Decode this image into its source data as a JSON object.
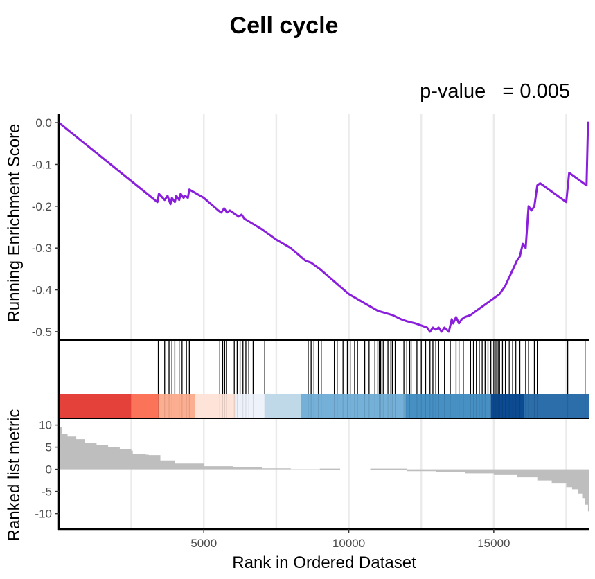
{
  "chart_data": {
    "type": "line",
    "title": "Cell cycle",
    "annotation": "p-value   = 0.005",
    "xlabel": "Rank in Ordered Dataset",
    "xlim": [
      1,
      18300
    ],
    "x_ticks": [
      5000,
      10000,
      15000
    ],
    "grid": "vertical",
    "enrichment_panel": {
      "ylabel": "Running Enrichment Score",
      "ylim": [
        -0.52,
        0.02
      ],
      "y_ticks": [
        "0.0",
        "-0.1",
        "-0.2",
        "-0.3",
        "-0.4",
        "-0.5"
      ],
      "y_tick_values": [
        0,
        -0.1,
        -0.2,
        -0.3,
        -0.4,
        -0.5
      ],
      "line_color": "#8a1fdb",
      "series": [
        {
          "x": [
            1,
            3400,
            3450,
            3650,
            3750,
            3850,
            3900,
            4000,
            4050,
            4150,
            4200,
            4300,
            4350,
            4450,
            4500,
            5000,
            5500,
            5600,
            5700,
            5800,
            5900,
            6000,
            6200,
            6300,
            6400,
            7000,
            7500,
            8000,
            8500,
            8700,
            9000,
            9500,
            10000,
            10500,
            11000,
            11500,
            11800,
            12000,
            12300,
            12700,
            12800,
            12900,
            13000,
            13100,
            13200,
            13300,
            13450,
            13550,
            13600,
            13700,
            13800,
            13900,
            14000,
            14200,
            14400,
            14600,
            14800,
            15000,
            15200,
            15400,
            15600,
            15800,
            15900,
            16000,
            16100,
            16200,
            16300,
            16400,
            16500,
            16600,
            16700,
            17500,
            17600,
            18200,
            18250,
            18280
          ],
          "y": [
            0.0,
            -0.19,
            -0.17,
            -0.185,
            -0.175,
            -0.195,
            -0.18,
            -0.19,
            -0.175,
            -0.185,
            -0.17,
            -0.18,
            -0.175,
            -0.18,
            -0.16,
            -0.18,
            -0.21,
            -0.215,
            -0.205,
            -0.215,
            -0.21,
            -0.215,
            -0.225,
            -0.22,
            -0.23,
            -0.255,
            -0.28,
            -0.3,
            -0.33,
            -0.335,
            -0.35,
            -0.38,
            -0.41,
            -0.43,
            -0.45,
            -0.46,
            -0.47,
            -0.475,
            -0.48,
            -0.49,
            -0.5,
            -0.49,
            -0.495,
            -0.49,
            -0.5,
            -0.49,
            -0.5,
            -0.47,
            -0.48,
            -0.465,
            -0.48,
            -0.47,
            -0.465,
            -0.46,
            -0.45,
            -0.44,
            -0.43,
            -0.42,
            -0.41,
            -0.39,
            -0.36,
            -0.33,
            -0.32,
            -0.29,
            -0.3,
            -0.2,
            -0.21,
            -0.2,
            -0.15,
            -0.145,
            -0.15,
            -0.19,
            -0.12,
            -0.15,
            0.0,
            0.0
          ]
        }
      ]
    },
    "hit_ranks": [
      3430,
      3650,
      3800,
      3900,
      4000,
      4150,
      4250,
      4400,
      4500,
      5550,
      5650,
      5720,
      5780,
      6050,
      6150,
      6250,
      6350,
      6450,
      6550,
      6700,
      7100,
      8600,
      8700,
      8800,
      8950,
      9050,
      9500,
      9600,
      9800,
      9950,
      10050,
      10200,
      10300,
      10550,
      10700,
      10900,
      11000,
      11050,
      11100,
      11150,
      11200,
      11350,
      11450,
      11500,
      11600,
      11900,
      12000,
      12100,
      12150,
      12350,
      12500,
      12650,
      12800,
      12900,
      13000,
      13100,
      13300,
      13500,
      13700,
      13800,
      13950,
      14200,
      14300,
      14400,
      14500,
      14600,
      14700,
      14800,
      14900,
      15000,
      15050,
      15100,
      15150,
      15200,
      15300,
      15400,
      15500,
      15550,
      15650,
      15750,
      15800,
      15900,
      16100,
      16200,
      16400,
      16500,
      17550,
      18150
    ],
    "color_bar": [
      {
        "from": 1,
        "to": 2500,
        "color": "#e3413a"
      },
      {
        "from": 2500,
        "to": 3450,
        "color": "#fb7358"
      },
      {
        "from": 3450,
        "to": 4700,
        "color": "#fcae91"
      },
      {
        "from": 4700,
        "to": 6100,
        "color": "#fde3d8"
      },
      {
        "from": 6100,
        "to": 7100,
        "color": "#eef3fb"
      },
      {
        "from": 7100,
        "to": 8350,
        "color": "#c0d9e8"
      },
      {
        "from": 8350,
        "to": 11950,
        "color": "#74b0d8"
      },
      {
        "from": 11950,
        "to": 14900,
        "color": "#4690c4"
      },
      {
        "from": 14900,
        "to": 16050,
        "color": "#0c4b91"
      },
      {
        "from": 16050,
        "to": 18300,
        "color": "#2b6eaa"
      }
    ],
    "ranked_panel": {
      "ylabel": "Ranked list metric",
      "ylim": [
        -13.5,
        11.5
      ],
      "y_ticks": [
        "10",
        "5",
        "0",
        "-5",
        "-10"
      ],
      "y_tick_values": [
        10,
        5,
        0,
        -5,
        -10
      ],
      "fill_color": "#bebebe",
      "x": [
        1,
        100,
        300,
        600,
        900,
        1300,
        1700,
        2100,
        2500,
        2550,
        3000,
        3100,
        3500,
        4000,
        5000,
        6000,
        7000,
        8000,
        9000,
        9680,
        10750,
        11000,
        12000,
        13000,
        14000,
        15000,
        15800,
        16500,
        17000,
        17500,
        17700,
        17900,
        18050,
        18150,
        18250,
        18300
      ],
      "values": [
        9.5,
        8.0,
        7.4,
        6.8,
        6.0,
        5.5,
        5.0,
        4.5,
        4.2,
        3.4,
        3.3,
        3.2,
        2.0,
        1.3,
        0.7,
        0.4,
        0.2,
        0.05,
        0.0,
        0.0,
        -0.1,
        -0.2,
        -0.4,
        -0.6,
        -0.9,
        -1.3,
        -1.8,
        -2.5,
        -3.2,
        -4.0,
        -4.5,
        -5.5,
        -6.5,
        -8.0,
        -9.5,
        -13.0
      ],
      "gap": [
        9700,
        10740
      ]
    }
  }
}
